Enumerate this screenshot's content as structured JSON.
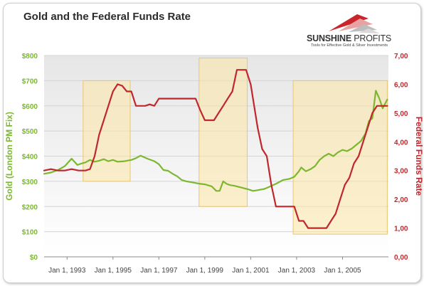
{
  "chart_data": {
    "type": "line",
    "title": "Gold and the Federal Funds Rate",
    "brand": {
      "name_bold": "SUNSHINE",
      "name_light": " PROFITS",
      "tagline": "Tools for Effective Gold & Silver Investments"
    },
    "x_ticks": [
      "Jan 1, 1993",
      "Jan 1, 1995",
      "Jan 1, 1997",
      "Jan 1, 1999",
      "Jan 1, 2001",
      "Jan 1, 2003",
      "Jan 1, 2005"
    ],
    "xlim": [
      1992.0,
      2007.0
    ],
    "left_axis": {
      "label": "Gold (London PM Fix)",
      "ylim": [
        0,
        800
      ],
      "ticks": [
        "$0",
        "$100",
        "$200",
        "$300",
        "$400",
        "$500",
        "$600",
        "$700",
        "$800"
      ],
      "color": "#7cb82f"
    },
    "right_axis": {
      "label": "Federal Funds Rate",
      "ylim": [
        0,
        7
      ],
      "ticks": [
        "0,00",
        "1,00",
        "2,00",
        "3,00",
        "4,00",
        "5,00",
        "6,00",
        "7,00"
      ],
      "color": "#c0272d"
    },
    "grid": true,
    "highlights": [
      {
        "x_start": 1993.7,
        "x_end": 1995.75,
        "y_low": 300,
        "y_high": 700
      },
      {
        "x_start": 1998.75,
        "x_end": 2000.85,
        "y_low": 200,
        "y_high": 790
      },
      {
        "x_start": 2002.85,
        "x_end": 2006.95,
        "y_low": 90,
        "y_high": 700
      }
    ],
    "series": [
      {
        "axis": "left",
        "color": "#7cb82f",
        "x": [
          1992.0,
          1992.3,
          1992.6,
          1992.9,
          1993.2,
          1993.45,
          1993.6,
          1993.8,
          1994.0,
          1994.2,
          1994.4,
          1994.6,
          1994.8,
          1995.0,
          1995.2,
          1995.5,
          1995.8,
          1996.0,
          1996.2,
          1996.5,
          1996.8,
          1997.0,
          1997.2,
          1997.4,
          1997.6,
          1997.8,
          1998.0,
          1998.2,
          1998.5,
          1998.8,
          1999.0,
          1999.3,
          1999.5,
          1999.65,
          1999.8,
          1999.95,
          2000.1,
          2000.3,
          2000.6,
          2000.9,
          2001.1,
          2001.3,
          2001.6,
          2001.8,
          2002.1,
          2002.4,
          2002.7,
          2002.9,
          2003.1,
          2003.2,
          2003.4,
          2003.6,
          2003.8,
          2004.0,
          2004.2,
          2004.4,
          2004.6,
          2004.8,
          2005.0,
          2005.2,
          2005.4,
          2005.6,
          2005.8,
          2006.0,
          2006.15,
          2006.3,
          2006.45,
          2006.6,
          2006.75,
          2006.95
        ],
        "values": [
          330,
          335,
          345,
          360,
          390,
          365,
          370,
          375,
          385,
          378,
          382,
          388,
          380,
          385,
          378,
          380,
          385,
          392,
          402,
          390,
          380,
          368,
          345,
          342,
          330,
          320,
          305,
          300,
          295,
          290,
          288,
          280,
          262,
          262,
          300,
          290,
          285,
          282,
          275,
          268,
          262,
          265,
          270,
          278,
          290,
          305,
          310,
          318,
          340,
          355,
          340,
          348,
          360,
          385,
          400,
          410,
          400,
          415,
          425,
          420,
          430,
          445,
          460,
          490,
          540,
          550,
          660,
          630,
          590,
          625
        ]
      },
      {
        "axis": "right",
        "color": "#c0272d",
        "x": [
          1992.0,
          1992.3,
          1992.6,
          1992.9,
          1993.2,
          1993.5,
          1993.8,
          1994.0,
          1994.2,
          1994.4,
          1994.6,
          1994.8,
          1995.0,
          1995.2,
          1995.4,
          1995.6,
          1995.8,
          1996.0,
          1996.2,
          1996.4,
          1996.6,
          1996.8,
          1997.0,
          1997.2,
          1997.4,
          1997.6,
          1997.8,
          1998.0,
          1998.2,
          1998.4,
          1998.6,
          1998.8,
          1999.0,
          1999.2,
          1999.4,
          1999.6,
          1999.8,
          2000.0,
          2000.2,
          2000.4,
          2000.6,
          2000.8,
          2001.0,
          2001.1,
          2001.3,
          2001.5,
          2001.7,
          2001.9,
          2002.1,
          2002.4,
          2002.7,
          2002.9,
          2003.1,
          2003.3,
          2003.5,
          2003.7,
          2004.0,
          2004.3,
          2004.5,
          2004.7,
          2004.9,
          2005.1,
          2005.3,
          2005.5,
          2005.7,
          2005.9,
          2006.1,
          2006.3,
          2006.5,
          2006.7,
          2006.95
        ],
        "values": [
          3.0,
          3.05,
          3.0,
          3.0,
          3.05,
          3.0,
          3.0,
          3.05,
          3.5,
          4.25,
          4.75,
          5.25,
          5.75,
          6.0,
          5.95,
          5.75,
          5.75,
          5.25,
          5.25,
          5.25,
          5.3,
          5.25,
          5.5,
          5.5,
          5.5,
          5.5,
          5.5,
          5.5,
          5.5,
          5.5,
          5.5,
          5.1,
          4.75,
          4.75,
          4.75,
          5.0,
          5.25,
          5.5,
          5.75,
          6.5,
          6.5,
          6.5,
          6.0,
          5.5,
          4.5,
          3.75,
          3.5,
          2.5,
          1.75,
          1.75,
          1.75,
          1.75,
          1.25,
          1.25,
          1.0,
          1.0,
          1.0,
          1.0,
          1.25,
          1.5,
          2.0,
          2.5,
          2.75,
          3.25,
          3.5,
          4.0,
          4.5,
          5.0,
          5.25,
          5.25,
          5.25
        ]
      }
    ]
  }
}
